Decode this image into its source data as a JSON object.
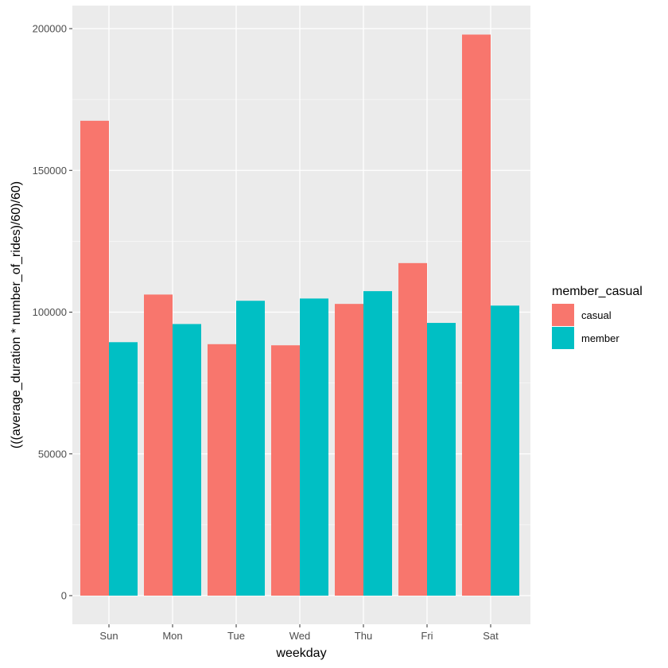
{
  "chart_data": {
    "type": "bar",
    "mode": "grouped",
    "title": "",
    "xlabel": "weekday",
    "ylabel": "(((average_duration * number_of_rides)/60)/60)",
    "categories": [
      "Sun",
      "Mon",
      "Tue",
      "Wed",
      "Thu",
      "Fri",
      "Sat"
    ],
    "series": [
      {
        "name": "casual",
        "color": "#F8766D",
        "values": [
          167500,
          106200,
          88700,
          88300,
          102900,
          117300,
          197900
        ]
      },
      {
        "name": "member",
        "color": "#00BFC4",
        "values": [
          89400,
          95800,
          104000,
          104800,
          107400,
          96200,
          102300
        ]
      }
    ],
    "ylim": [
      0,
      208000
    ],
    "yticks": [
      0,
      50000,
      100000,
      150000,
      200000
    ],
    "ytick_labels": [
      "0",
      "50000",
      "100000",
      "150000",
      "200000"
    ],
    "legend": {
      "title": "member_casual",
      "position": "right"
    },
    "panel_color": "#EBEBEB",
    "grid": true
  }
}
